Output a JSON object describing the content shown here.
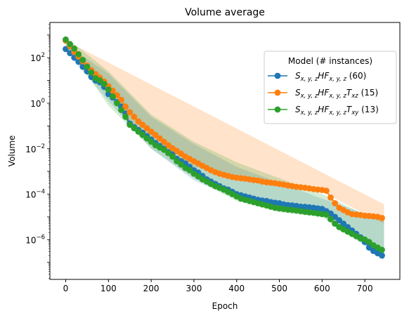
{
  "chart_data": {
    "type": "line",
    "title": "Volume average",
    "xlabel": "Epoch",
    "ylabel": "Volume",
    "xlim": [
      -37,
      782
    ],
    "ylim_log10": [
      -7.75,
      3.55
    ],
    "yscale": "log",
    "x_ticks": [
      0,
      100,
      200,
      300,
      400,
      500,
      600,
      700
    ],
    "y_ticks": [
      {
        "exp": 2,
        "base": "10",
        "sup": "2"
      },
      {
        "exp": 0,
        "base": "10",
        "sup": "0"
      },
      {
        "exp": -2,
        "base": "10",
        "sup": "−2"
      },
      {
        "exp": -4,
        "base": "10",
        "sup": "−4"
      },
      {
        "exp": -6,
        "base": "10",
        "sup": "−6"
      }
    ],
    "grid": false,
    "legend": {
      "title": "Model (# instances)",
      "placement": "upper right",
      "entries": [
        {
          "main": "S",
          "sub1": "x, y, z",
          "main2": "HF",
          "sub2": "x, y, z",
          "main3": "",
          "sub3": "",
          "count": "(60)"
        },
        {
          "main": "S",
          "sub1": "x, y, z",
          "main2": "HF",
          "sub2": "x, y, z",
          "main3": "T",
          "sub3": "xz",
          "count": "(15)"
        },
        {
          "main": "S",
          "sub1": "x, y, z",
          "main2": "HF",
          "sub2": "x, y, z",
          "main3": "T",
          "sub3": "xy",
          "count": "(13)"
        }
      ]
    },
    "series": [
      {
        "color": "#1f77b4",
        "x": [
          0,
          10,
          20,
          30,
          40,
          50,
          60,
          70,
          80,
          90,
          100,
          110,
          120,
          130,
          140,
          150,
          160,
          170,
          180,
          190,
          200,
          210,
          220,
          230,
          240,
          250,
          260,
          270,
          280,
          290,
          300,
          310,
          320,
          330,
          340,
          350,
          360,
          370,
          380,
          390,
          400,
          410,
          420,
          430,
          440,
          450,
          460,
          470,
          480,
          490,
          500,
          510,
          520,
          530,
          540,
          550,
          560,
          570,
          580,
          590,
          600,
          610,
          620,
          630,
          640,
          650,
          660,
          670,
          680,
          690,
          700,
          710,
          720,
          730,
          740
        ],
        "y_log10": [
          2.38,
          2.2,
          2.0,
          1.82,
          1.6,
          1.4,
          1.15,
          1.0,
          0.92,
          0.72,
          0.4,
          0.25,
          0.05,
          -0.15,
          -0.45,
          -0.9,
          -1.05,
          -1.18,
          -1.3,
          -1.45,
          -1.6,
          -1.75,
          -1.88,
          -2.0,
          -2.15,
          -2.25,
          -2.45,
          -2.55,
          -2.65,
          -2.8,
          -2.95,
          -3.05,
          -3.2,
          -3.35,
          -3.45,
          -3.55,
          -3.65,
          -3.75,
          -3.8,
          -3.9,
          -4.0,
          -4.05,
          -4.1,
          -4.15,
          -4.2,
          -4.25,
          -4.28,
          -4.3,
          -4.35,
          -4.38,
          -4.4,
          -4.45,
          -4.48,
          -4.5,
          -4.52,
          -4.55,
          -4.56,
          -4.58,
          -4.6,
          -4.63,
          -4.65,
          -4.75,
          -4.85,
          -5.0,
          -5.15,
          -5.3,
          -5.45,
          -5.6,
          -5.75,
          -5.9,
          -6.1,
          -6.35,
          -6.5,
          -6.6,
          -6.7
        ]
      },
      {
        "color": "#ff7f0e",
        "x": [
          0,
          10,
          20,
          30,
          40,
          50,
          60,
          70,
          80,
          90,
          100,
          110,
          120,
          130,
          140,
          150,
          160,
          170,
          180,
          190,
          200,
          210,
          220,
          230,
          240,
          250,
          260,
          270,
          280,
          290,
          300,
          310,
          320,
          330,
          340,
          350,
          360,
          370,
          380,
          390,
          400,
          410,
          420,
          430,
          440,
          450,
          460,
          470,
          480,
          490,
          500,
          510,
          520,
          530,
          540,
          550,
          560,
          570,
          580,
          590,
          600,
          610,
          620,
          630,
          640,
          650,
          660,
          670,
          680,
          690,
          700,
          710,
          720,
          730,
          740
        ],
        "y_log10": [
          2.75,
          2.5,
          2.25,
          2.05,
          1.85,
          1.65,
          1.45,
          1.28,
          1.12,
          0.95,
          0.75,
          0.55,
          0.35,
          0.15,
          -0.15,
          -0.4,
          -0.6,
          -0.8,
          -0.95,
          -1.1,
          -1.25,
          -1.4,
          -1.55,
          -1.7,
          -1.85,
          -1.98,
          -2.1,
          -2.22,
          -2.35,
          -2.45,
          -2.55,
          -2.65,
          -2.75,
          -2.85,
          -2.95,
          -3.03,
          -3.1,
          -3.15,
          -3.2,
          -3.25,
          -3.28,
          -3.3,
          -3.32,
          -3.35,
          -3.38,
          -3.4,
          -3.45,
          -3.48,
          -3.5,
          -3.52,
          -3.55,
          -3.58,
          -3.62,
          -3.65,
          -3.68,
          -3.7,
          -3.72,
          -3.75,
          -3.78,
          -3.8,
          -3.82,
          -3.85,
          -4.15,
          -4.4,
          -4.6,
          -4.7,
          -4.8,
          -4.88,
          -4.9,
          -4.92,
          -4.95,
          -4.96,
          -4.98,
          -5.0,
          -5.05
        ]
      },
      {
        "color": "#2ca02c",
        "x": [
          0,
          10,
          20,
          30,
          40,
          50,
          60,
          70,
          80,
          90,
          100,
          110,
          120,
          130,
          140,
          150,
          160,
          170,
          180,
          190,
          200,
          210,
          220,
          230,
          240,
          250,
          260,
          270,
          280,
          290,
          300,
          310,
          320,
          330,
          340,
          350,
          360,
          370,
          380,
          390,
          400,
          410,
          420,
          430,
          440,
          450,
          460,
          470,
          480,
          490,
          500,
          510,
          520,
          530,
          540,
          550,
          560,
          570,
          580,
          590,
          600,
          610,
          620,
          630,
          640,
          650,
          660,
          670,
          680,
          690,
          700,
          710,
          720,
          730,
          740
        ],
        "y_log10": [
          2.8,
          2.6,
          2.4,
          2.15,
          1.9,
          1.6,
          1.35,
          1.1,
          1.0,
          0.85,
          0.6,
          0.3,
          0.0,
          -0.3,
          -0.6,
          -0.95,
          -1.1,
          -1.25,
          -1.4,
          -1.55,
          -1.7,
          -1.85,
          -1.95,
          -2.05,
          -2.2,
          -2.35,
          -2.55,
          -2.7,
          -2.85,
          -2.95,
          -3.1,
          -3.22,
          -3.35,
          -3.45,
          -3.55,
          -3.65,
          -3.72,
          -3.8,
          -3.9,
          -4.0,
          -4.1,
          -4.2,
          -4.25,
          -4.3,
          -4.35,
          -4.4,
          -4.45,
          -4.5,
          -4.55,
          -4.6,
          -4.63,
          -4.65,
          -4.68,
          -4.7,
          -4.72,
          -4.75,
          -4.78,
          -4.8,
          -4.82,
          -4.85,
          -4.88,
          -4.9,
          -5.1,
          -5.3,
          -5.45,
          -5.55,
          -5.65,
          -5.75,
          -5.85,
          -5.95,
          -6.0,
          -6.1,
          -6.25,
          -6.35,
          -6.45
        ]
      }
    ],
    "bands": [
      {
        "color": "#ff7f0e",
        "opacity": 0.22,
        "upper": [
          [
            0,
            2.75
          ],
          [
            745,
            -4.45
          ]
        ],
        "lower": [
          [
            745,
            -5.3
          ],
          [
            600,
            -3.9
          ],
          [
            300,
            -2.8
          ],
          [
            150,
            -0.8
          ],
          [
            0,
            2.6
          ]
        ]
      },
      {
        "color": "#1f77b4",
        "opacity": 0.18,
        "upper": [
          [
            0,
            2.6
          ],
          [
            100,
            1.3
          ],
          [
            200,
            -0.6
          ],
          [
            300,
            -1.8
          ],
          [
            400,
            -2.8
          ],
          [
            500,
            -3.5
          ],
          [
            600,
            -4.2
          ],
          [
            700,
            -4.85
          ],
          [
            745,
            -5.0
          ]
        ],
        "lower": [
          [
            745,
            -6.9
          ],
          [
            650,
            -5.6
          ],
          [
            600,
            -4.9
          ],
          [
            500,
            -4.6
          ],
          [
            400,
            -4.2
          ],
          [
            300,
            -3.4
          ],
          [
            200,
            -2.0
          ],
          [
            100,
            0.1
          ],
          [
            0,
            2.3
          ]
        ]
      },
      {
        "color": "#2ca02c",
        "opacity": 0.2,
        "upper": [
          [
            0,
            2.9
          ],
          [
            100,
            1.4
          ],
          [
            200,
            -0.5
          ],
          [
            300,
            -1.7
          ],
          [
            400,
            -2.6
          ],
          [
            500,
            -3.3
          ],
          [
            600,
            -4.0
          ],
          [
            700,
            -4.9
          ],
          [
            745,
            -5.1
          ]
        ],
        "lower": [
          [
            745,
            -6.6
          ],
          [
            650,
            -5.7
          ],
          [
            600,
            -5.0
          ],
          [
            500,
            -4.8
          ],
          [
            400,
            -4.3
          ],
          [
            300,
            -3.3
          ],
          [
            200,
            -2.0
          ],
          [
            100,
            -0.1
          ],
          [
            0,
            2.6
          ]
        ]
      }
    ]
  }
}
